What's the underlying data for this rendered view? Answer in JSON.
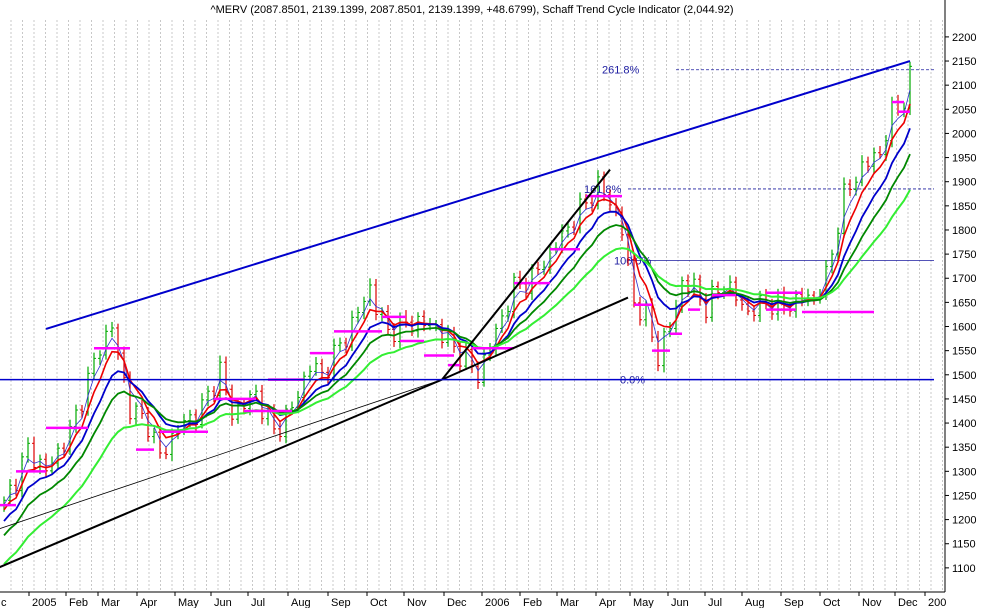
{
  "chart_data": {
    "type": "line",
    "title": "^MERV (2087.8501, 2139.1399, 2087.8501, 2139.1399, +48.6799), Schaff Trend Cycle Indicator (2,044.92)",
    "xlabel": "",
    "ylabel": "",
    "ylim": [
      1050,
      2235
    ],
    "y_ticks": [
      1100,
      1150,
      1200,
      1250,
      1300,
      1350,
      1400,
      1450,
      1500,
      1550,
      1600,
      1650,
      1700,
      1750,
      1800,
      1850,
      1900,
      1950,
      2000,
      2050,
      2100,
      2150,
      2200
    ],
    "x_ticks": [
      "c",
      "2005",
      "Feb",
      "Mar",
      "Apr",
      "May",
      "Jun",
      "Jul",
      "Aug",
      "Sep",
      "Oct",
      "Nov",
      "Dec",
      "2006",
      "Feb",
      "Mar",
      "Apr",
      "May",
      "Jun",
      "Jul",
      "Aug",
      "Sep",
      "Oct",
      "Nov",
      "Dec",
      "200"
    ],
    "grid": "vertical",
    "colors": {
      "price_up": "#00aa00",
      "price_down": "#dd0000",
      "ma_thin": "#3030d0",
      "ma_red": "#ee0000",
      "ma_blue": "#0000cc",
      "ma_dkgreen": "#008800",
      "ma_ltgreen": "#33ee33",
      "pivot": "#ff00ff",
      "trendline": "#000000",
      "channel": "#0000cc"
    },
    "price_anchors": [
      {
        "i": 0,
        "v": 1230
      },
      {
        "i": 4,
        "v": 1345
      },
      {
        "i": 7,
        "v": 1300
      },
      {
        "i": 11,
        "v": 1380
      },
      {
        "i": 16,
        "v": 1560
      },
      {
        "i": 18,
        "v": 1600
      },
      {
        "i": 21,
        "v": 1430
      },
      {
        "i": 24,
        "v": 1400
      },
      {
        "i": 26,
        "v": 1330
      },
      {
        "i": 29,
        "v": 1390
      },
      {
        "i": 33,
        "v": 1430
      },
      {
        "i": 36,
        "v": 1510
      },
      {
        "i": 38,
        "v": 1420
      },
      {
        "i": 42,
        "v": 1460
      },
      {
        "i": 45,
        "v": 1380
      },
      {
        "i": 48,
        "v": 1430
      },
      {
        "i": 51,
        "v": 1520
      },
      {
        "i": 53,
        "v": 1500
      },
      {
        "i": 57,
        "v": 1580
      },
      {
        "i": 61,
        "v": 1680
      },
      {
        "i": 62,
        "v": 1640
      },
      {
        "i": 64,
        "v": 1590
      },
      {
        "i": 68,
        "v": 1610
      },
      {
        "i": 72,
        "v": 1600
      },
      {
        "i": 74,
        "v": 1570
      },
      {
        "i": 77,
        "v": 1530
      },
      {
        "i": 79,
        "v": 1500
      },
      {
        "i": 81,
        "v": 1560
      },
      {
        "i": 85,
        "v": 1680
      },
      {
        "i": 88,
        "v": 1700
      },
      {
        "i": 92,
        "v": 1770
      },
      {
        "i": 96,
        "v": 1840
      },
      {
        "i": 99,
        "v": 1890
      },
      {
        "i": 101,
        "v": 1860
      },
      {
        "i": 103,
        "v": 1800
      },
      {
        "i": 105,
        "v": 1650
      },
      {
        "i": 107,
        "v": 1620
      },
      {
        "i": 109,
        "v": 1540
      },
      {
        "i": 111,
        "v": 1600
      },
      {
        "i": 113,
        "v": 1690
      },
      {
        "i": 115,
        "v": 1680
      },
      {
        "i": 117,
        "v": 1640
      },
      {
        "i": 120,
        "v": 1690
      },
      {
        "i": 124,
        "v": 1630
      },
      {
        "i": 127,
        "v": 1650
      },
      {
        "i": 130,
        "v": 1640
      },
      {
        "i": 133,
        "v": 1660
      },
      {
        "i": 135,
        "v": 1660
      },
      {
        "i": 137,
        "v": 1700
      },
      {
        "i": 140,
        "v": 1870
      },
      {
        "i": 143,
        "v": 1930
      },
      {
        "i": 146,
        "v": 1960
      },
      {
        "i": 148,
        "v": 2040
      },
      {
        "i": 150,
        "v": 2070
      },
      {
        "i": 151,
        "v": 2139
      }
    ],
    "pivot_levels": [
      {
        "i0": -2,
        "i1": 2,
        "v": 1230
      },
      {
        "i0": 2,
        "i1": 7,
        "v": 1300
      },
      {
        "i0": 7,
        "i1": 14,
        "v": 1390
      },
      {
        "i0": 15,
        "i1": 21,
        "v": 1555
      },
      {
        "i0": 22,
        "i1": 25,
        "v": 1345
      },
      {
        "i0": 26,
        "i1": 34,
        "v": 1382
      },
      {
        "i0": 35,
        "i1": 42,
        "v": 1450
      },
      {
        "i0": 40,
        "i1": 48,
        "v": 1425
      },
      {
        "i0": 44,
        "i1": 50,
        "v": 1490
      },
      {
        "i0": 51,
        "i1": 55,
        "v": 1545
      },
      {
        "i0": 55,
        "i1": 63,
        "v": 1590
      },
      {
        "i0": 63,
        "i1": 67,
        "v": 1620
      },
      {
        "i0": 66,
        "i1": 70,
        "v": 1570
      },
      {
        "i0": 70,
        "i1": 75,
        "v": 1540
      },
      {
        "i0": 74,
        "i1": 76,
        "v": 1520
      },
      {
        "i0": 78,
        "i1": 85,
        "v": 1555
      },
      {
        "i0": 85,
        "i1": 91,
        "v": 1690
      },
      {
        "i0": 91,
        "i1": 96,
        "v": 1760
      },
      {
        "i0": 97,
        "i1": 103,
        "v": 1870
      },
      {
        "i0": 105,
        "i1": 108,
        "v": 1645
      },
      {
        "i0": 108,
        "i1": 111,
        "v": 1550
      },
      {
        "i0": 111,
        "i1": 113,
        "v": 1585
      },
      {
        "i0": 114,
        "i1": 116,
        "v": 1635
      },
      {
        "i0": 118,
        "i1": 122,
        "v": 1665
      },
      {
        "i0": 127,
        "i1": 132,
        "v": 1635
      },
      {
        "i0": 127,
        "i1": 133,
        "v": 1670
      },
      {
        "i0": 133,
        "i1": 145,
        "v": 1630
      },
      {
        "i0": 148,
        "i1": 150,
        "v": 2065
      },
      {
        "i0": 149,
        "i1": 151,
        "v": 2045
      }
    ],
    "trendlines": [
      {
        "name": "",
        "x0": -1,
        "y0": 1100,
        "x1": 73,
        "y1": 1490,
        "color": "#000000",
        "width": 2
      },
      {
        "name": "",
        "x0": -1,
        "y0": 1180,
        "x1": 73,
        "y1": 1490,
        "color": "#000000",
        "width": 0.8
      },
      {
        "name": "",
        "x0": 73,
        "y0": 1490,
        "x1": 104,
        "y1": 1660,
        "color": "#000000",
        "width": 2
      },
      {
        "name": "",
        "x0": 73,
        "y0": 1490,
        "x1": 101,
        "y1": 1925,
        "color": "#000000",
        "width": 2
      },
      {
        "name": "",
        "x0": 7,
        "y0": 1595,
        "x1": 151,
        "y1": 2150,
        "color": "#0000cc",
        "width": 2
      },
      {
        "name": "",
        "x0": -2,
        "y0": 1490,
        "x1": 155,
        "y1": 1490,
        "color": "#0000cc",
        "width": 1.5
      }
    ],
    "fib_levels": [
      {
        "label": "261.8%",
        "v": 2132,
        "i0": 112,
        "i1": 155,
        "dashed": true,
        "label_i": 99
      },
      {
        "label": "161.8%",
        "v": 1885,
        "i0": 104,
        "i1": 155,
        "dashed": true,
        "label_i": 96
      },
      {
        "label": "100.0%",
        "v": 1737,
        "i0": 104,
        "i1": 155,
        "dashed": false,
        "label_i": 101
      },
      {
        "label": "0.0%",
        "v": 1490,
        "i0": 104,
        "i1": 155,
        "dashed": false,
        "label_i": 102
      }
    ]
  }
}
